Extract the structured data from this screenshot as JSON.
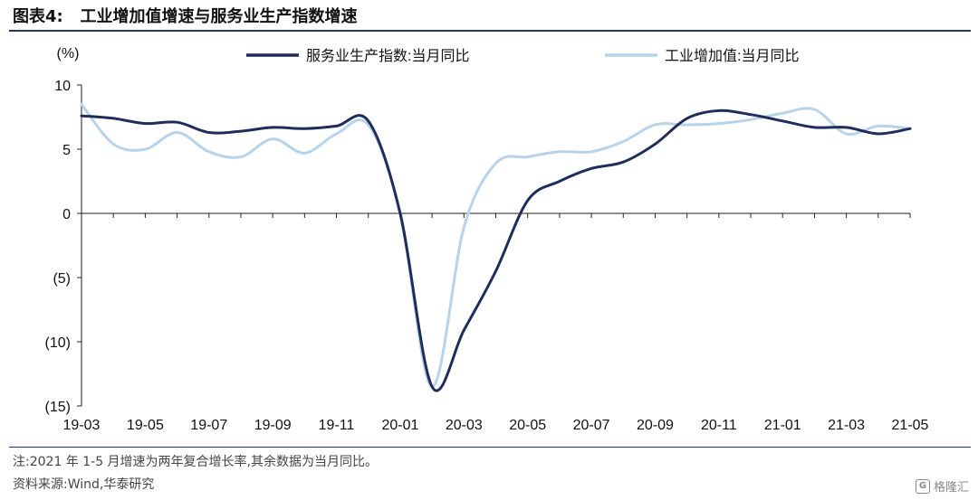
{
  "header": {
    "title": "图表4:   工业增加值增速与服务业生产指数增速"
  },
  "footer": {
    "note": "注:2021 年 1-5 月增速为两年复合增长率,其余数据为当月同比。",
    "source": "资料来源:Wind,华泰研究",
    "watermark": "格隆汇"
  },
  "chart_data": {
    "type": "line",
    "ylabel": "(%)",
    "ylim": [
      -15,
      10
    ],
    "yticks": [
      10,
      5,
      0,
      -5,
      -10,
      -15
    ],
    "ytick_labels": [
      "10",
      "5",
      "0",
      "(5)",
      "(10)",
      "(15)"
    ],
    "xlim": [
      "19-03",
      "21-05"
    ],
    "xtick_labels": [
      "19-03",
      "19-05",
      "19-07",
      "19-09",
      "19-11",
      "20-01",
      "20-03",
      "20-05",
      "20-07",
      "20-09",
      "20-11",
      "21-01",
      "21-03",
      "21-05"
    ],
    "x": [
      "19-03",
      "19-04",
      "19-05",
      "19-06",
      "19-07",
      "19-08",
      "19-09",
      "19-10",
      "19-11",
      "19-12",
      "20-01",
      "20-02",
      "20-03",
      "20-04",
      "20-05",
      "20-06",
      "20-07",
      "20-08",
      "20-09",
      "20-10",
      "20-11",
      "20-12",
      "21-01",
      "21-02",
      "21-03",
      "21-04",
      "21-05"
    ],
    "series": [
      {
        "name": "服务业生产指数:当月同比",
        "color": "#1f2d5a",
        "values": [
          7.6,
          7.4,
          7.0,
          7.1,
          6.3,
          6.4,
          6.7,
          6.6,
          6.8,
          7.2,
          0.0,
          -13.5,
          -9.1,
          -4.5,
          1.0,
          2.5,
          3.5,
          4.0,
          5.4,
          7.4,
          8.0,
          7.7,
          7.2,
          6.7,
          6.7,
          6.2,
          6.6
        ]
      },
      {
        "name": "工业增加值:当月同比",
        "color": "#b7d3ea",
        "values": [
          8.5,
          5.4,
          5.0,
          6.3,
          4.8,
          4.4,
          5.8,
          4.7,
          6.2,
          6.9,
          0.0,
          -13.5,
          -1.1,
          3.9,
          4.4,
          4.8,
          4.8,
          5.6,
          6.9,
          6.9,
          7.0,
          7.3,
          7.8,
          8.1,
          6.2,
          6.8,
          6.6
        ]
      }
    ],
    "legend_position": "top"
  }
}
